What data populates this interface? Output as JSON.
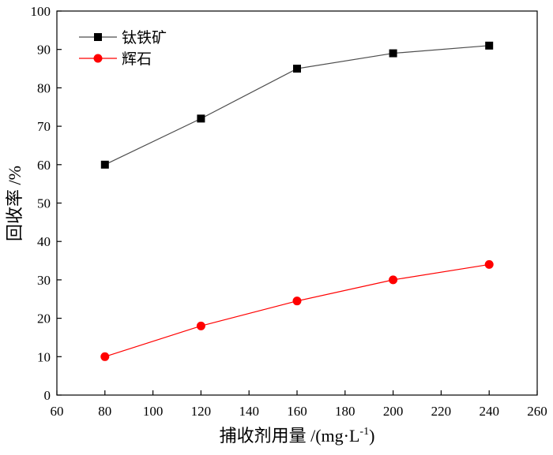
{
  "chart_data": {
    "type": "line",
    "title": "",
    "xlabel": "捕收剂用量 /(mg·L",
    "xlabel_sup": "-1",
    "xlabel_close": ")",
    "ylabel": "回收率 /%",
    "xlim": [
      60,
      260
    ],
    "ylim": [
      0,
      100
    ],
    "x_ticks": [
      60,
      80,
      100,
      120,
      140,
      160,
      180,
      200,
      220,
      240,
      260
    ],
    "y_ticks": [
      0,
      10,
      20,
      30,
      40,
      50,
      60,
      70,
      80,
      90,
      100
    ],
    "x": [
      80,
      120,
      160,
      200,
      240
    ],
    "series": [
      {
        "name": "钛铁矿",
        "values": [
          60,
          72,
          85,
          89,
          91
        ],
        "color": "#000000",
        "line_color": "#4d4d4d",
        "marker": "square"
      },
      {
        "name": "辉石",
        "values": [
          10,
          18,
          24.5,
          30,
          34
        ],
        "color": "#ff0000",
        "line_color": "#ff0000",
        "marker": "circle"
      }
    ],
    "legend_position": "top-left",
    "grid": false
  }
}
